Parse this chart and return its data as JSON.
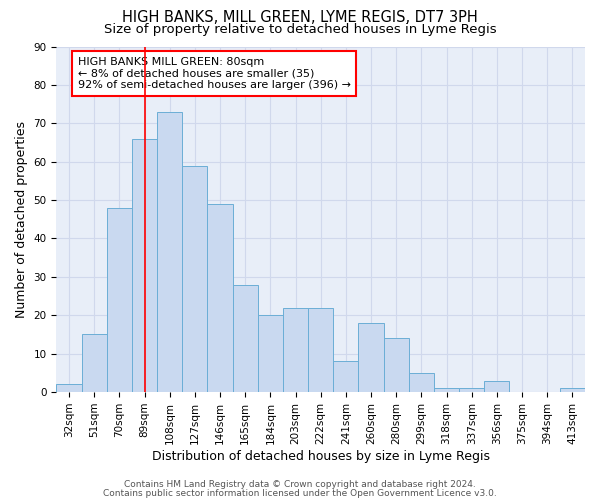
{
  "title": "HIGH BANKS, MILL GREEN, LYME REGIS, DT7 3PH",
  "subtitle": "Size of property relative to detached houses in Lyme Regis",
  "xlabel": "Distribution of detached houses by size in Lyme Regis",
  "ylabel": "Number of detached properties",
  "categories": [
    "32sqm",
    "51sqm",
    "70sqm",
    "89sqm",
    "108sqm",
    "127sqm",
    "146sqm",
    "165sqm",
    "184sqm",
    "203sqm",
    "222sqm",
    "241sqm",
    "260sqm",
    "280sqm",
    "299sqm",
    "318sqm",
    "337sqm",
    "356sqm",
    "375sqm",
    "394sqm",
    "413sqm"
  ],
  "values": [
    2,
    15,
    48,
    66,
    73,
    59,
    49,
    28,
    20,
    22,
    22,
    8,
    18,
    14,
    5,
    1,
    1,
    3,
    0,
    0,
    1
  ],
  "bar_color": "#c9d9f0",
  "bar_edge_color": "#6baed6",
  "red_line_x": 3.0,
  "annotation_text": "HIGH BANKS MILL GREEN: 80sqm\n← 8% of detached houses are smaller (35)\n92% of semi-detached houses are larger (396) →",
  "annotation_box_color": "white",
  "annotation_box_edge_color": "red",
  "ylim": [
    0,
    90
  ],
  "yticks": [
    0,
    10,
    20,
    30,
    40,
    50,
    60,
    70,
    80,
    90
  ],
  "footer_line1": "Contains HM Land Registry data © Crown copyright and database right 2024.",
  "footer_line2": "Contains public sector information licensed under the Open Government Licence v3.0.",
  "background_color": "#e8eef8",
  "grid_color": "#d0d8ec",
  "title_fontsize": 10.5,
  "subtitle_fontsize": 9.5,
  "axis_label_fontsize": 9,
  "tick_fontsize": 7.5,
  "annotation_fontsize": 8,
  "footer_fontsize": 6.5
}
